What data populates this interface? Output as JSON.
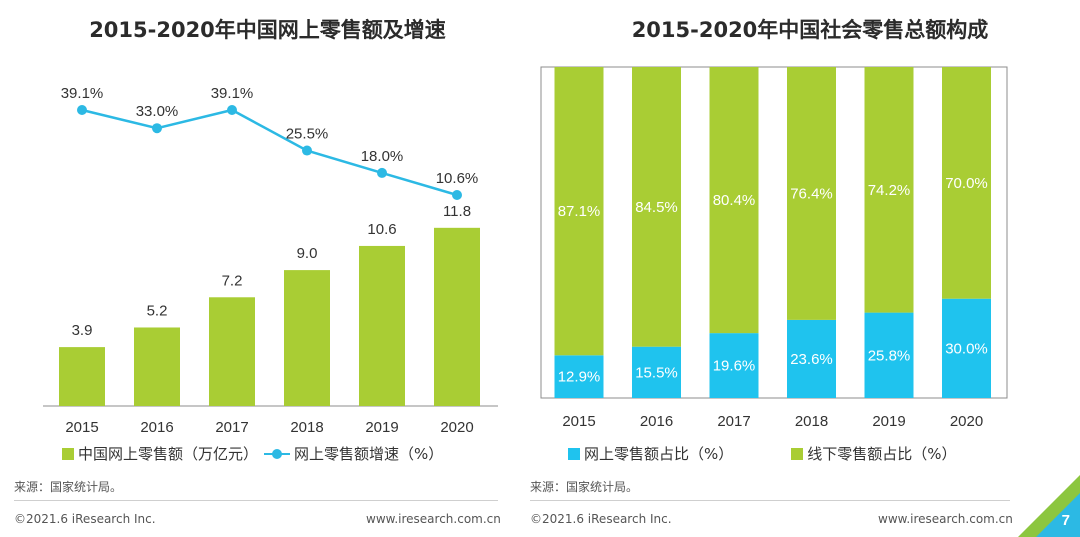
{
  "left_panel": {
    "legend": {
      "bar_label": "中国网上零售额（万亿元）",
      "line_label": "网上零售额增速（%）"
    },
    "source": "来源：国家统计局。",
    "copyright": "©2021.6 iResearch Inc.",
    "website": "www.iresearch.com.cn"
  },
  "right_panel": {
    "legend": {
      "online_label": "网上零售额占比（%）",
      "offline_label": "线下零售额占比（%）"
    },
    "source": "来源：国家统计局。",
    "copyright": "©2021.6 iResearch Inc.",
    "website": "www.iresearch.com.cn"
  },
  "page_number": "7",
  "colors": {
    "green": "#a9cd34",
    "blue": "#1fc3ee",
    "line": "#2cb9e4",
    "axis": "#8c8c8c"
  },
  "chart_data": [
    {
      "type": "bar",
      "title": "2015-2020年中国网上零售额及增速",
      "categories": [
        "2015",
        "2016",
        "2017",
        "2018",
        "2019",
        "2020"
      ],
      "series": [
        {
          "name": "中国网上零售额（万亿元）",
          "type": "bar",
          "values": [
            3.9,
            5.2,
            7.2,
            9.0,
            10.6,
            11.8
          ],
          "labels": [
            "3.9",
            "5.2",
            "7.2",
            "9.0",
            "10.6",
            "11.8"
          ]
        },
        {
          "name": "网上零售额增速（%）",
          "type": "line",
          "values": [
            39.1,
            33.0,
            39.1,
            25.5,
            18.0,
            10.6
          ],
          "labels": [
            "39.1%",
            "33.0%",
            "39.1%",
            "25.5%",
            "18.0%",
            "10.6%"
          ]
        }
      ],
      "legend_position": "bottom",
      "grid": false
    },
    {
      "type": "bar",
      "stacked": true,
      "title": "2015-2020年中国社会零售总额构成",
      "categories": [
        "2015",
        "2016",
        "2017",
        "2018",
        "2019",
        "2020"
      ],
      "series": [
        {
          "name": "网上零售额占比（%）",
          "values": [
            12.9,
            15.5,
            19.6,
            23.6,
            25.8,
            30.0
          ],
          "labels": [
            "12.9%",
            "15.5%",
            "19.6%",
            "23.6%",
            "25.8%",
            "30.0%"
          ]
        },
        {
          "name": "线下零售额占比（%）",
          "values": [
            87.1,
            84.5,
            80.4,
            76.4,
            74.2,
            70.0
          ],
          "labels": [
            "87.1%",
            "84.5%",
            "80.4%",
            "76.4%",
            "74.2%",
            "70.0%"
          ]
        }
      ],
      "ylim": [
        0,
        100
      ],
      "legend_position": "bottom",
      "grid": false
    }
  ]
}
